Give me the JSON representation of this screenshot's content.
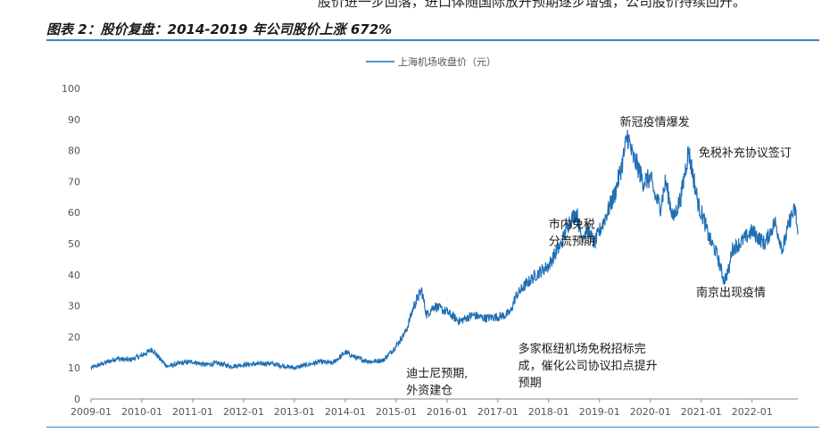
{
  "header": {
    "intro_text": "股价进一步回落，进口体随国际放开预期逐步增强，公司股价持续回升。",
    "figure_title": "图表 2：股价复盘：2014-2019 年公司股价上涨 672%"
  },
  "colors": {
    "line": "#1f6fb5",
    "accent": "#3a86c8",
    "axis": "#888888"
  },
  "chart_data": {
    "type": "line",
    "title": "",
    "xlabel": "",
    "ylabel": "",
    "ylim": [
      0,
      100
    ],
    "y_ticks": [
      0,
      10,
      20,
      30,
      40,
      50,
      60,
      70,
      80,
      90,
      100
    ],
    "xlim": [
      2009.0,
      2022.9
    ],
    "x_ticks": [
      "2009-01",
      "2010-01",
      "2011-01",
      "2012-01",
      "2013-01",
      "2014-01",
      "2015-01",
      "2016-01",
      "2017-01",
      "2018-01",
      "2019-01",
      "2020-01",
      "2021-01",
      "2022-01"
    ],
    "legend": {
      "position": "top-center"
    },
    "grid": false,
    "series": [
      {
        "name": "上海机场收盘价（元）",
        "x": [
          2009.0,
          2009.25,
          2009.5,
          2009.75,
          2010.0,
          2010.2,
          2010.35,
          2010.5,
          2010.75,
          2011.0,
          2011.25,
          2011.5,
          2011.75,
          2012.0,
          2012.5,
          2013.0,
          2013.5,
          2013.75,
          2014.0,
          2014.25,
          2014.5,
          2014.75,
          2015.0,
          2015.2,
          2015.35,
          2015.5,
          2015.6,
          2015.75,
          2016.0,
          2016.25,
          2016.5,
          2016.75,
          2017.0,
          2017.15,
          2017.25,
          2017.35,
          2017.5,
          2017.75,
          2018.0,
          2018.1,
          2018.25,
          2018.4,
          2018.55,
          2018.65,
          2018.75,
          2018.9,
          2019.0,
          2019.15,
          2019.3,
          2019.45,
          2019.55,
          2019.65,
          2019.75,
          2019.85,
          2020.0,
          2020.1,
          2020.2,
          2020.3,
          2020.45,
          2020.6,
          2020.75,
          2020.85,
          2020.95,
          2021.05,
          2021.15,
          2021.3,
          2021.45,
          2021.55,
          2021.6,
          2021.75,
          2022.0,
          2022.25,
          2022.45,
          2022.6,
          2022.75,
          2022.85,
          2022.9
        ],
        "y": [
          10,
          11.5,
          13,
          12.5,
          14,
          16,
          13,
          10.5,
          11.5,
          12,
          11,
          11.5,
          10.5,
          11,
          11.5,
          10,
          12,
          11.5,
          15,
          13,
          12,
          12.5,
          17,
          22,
          30,
          35,
          27,
          30,
          28,
          25,
          27,
          26,
          26.5,
          27,
          28,
          33,
          36,
          40,
          43,
          46,
          50,
          57,
          60,
          52,
          55,
          50,
          54,
          60,
          66,
          76,
          85,
          78,
          75,
          70,
          71,
          65,
          62,
          70,
          58,
          65,
          80,
          71,
          62,
          58,
          52,
          47,
          38,
          42,
          48,
          50,
          54,
          50,
          57,
          48,
          58,
          61,
          53
        ]
      }
    ],
    "annotations": [
      {
        "x": 2015.2,
        "y": 7,
        "lines": [
          "迪士尼预期,",
          "外资建仓"
        ]
      },
      {
        "x": 2017.4,
        "y": 15,
        "lines": [
          "多家枢纽机场免税招标完",
          "成，催化公司协议扣点提升",
          "预期"
        ]
      },
      {
        "x": 2018.0,
        "y": 55,
        "lines": [
          "市内免税",
          "分流预期"
        ]
      },
      {
        "x": 2019.4,
        "y": 88,
        "lines": [
          "新冠疫情爆发"
        ]
      },
      {
        "x": 2020.95,
        "y": 78,
        "lines": [
          "免税补充协议签订"
        ]
      },
      {
        "x": 2020.9,
        "y": 33,
        "lines": [
          "南京出现疫情"
        ]
      }
    ]
  }
}
